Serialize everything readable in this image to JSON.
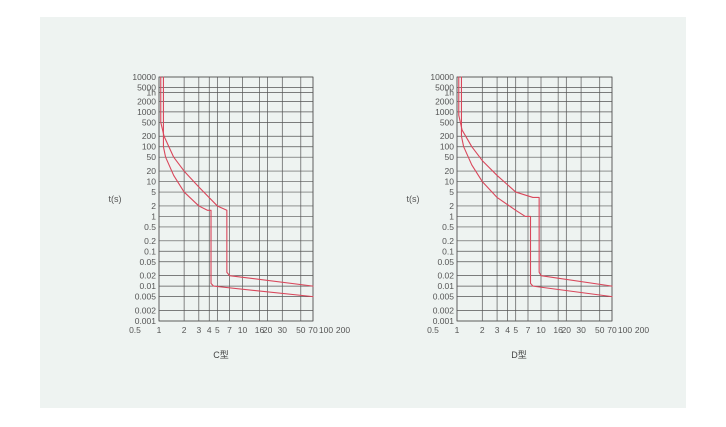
{
  "colors": {
    "background": "#eef3f1",
    "grid": "#555555",
    "curve": "#d9475b"
  },
  "chart_data": [
    {
      "type": "line",
      "title": "C型",
      "xlabel": "",
      "ylabel": "t(s)",
      "x_scale": "log",
      "y_scale": "log",
      "xlim": [
        1,
        70
      ],
      "ylim": [
        0.001,
        10000
      ],
      "x_tick_labels": [
        "0.5",
        "1",
        "2",
        "3",
        "4",
        "5",
        "7",
        "10",
        "16",
        "20",
        "30",
        "50",
        "70",
        "100",
        "200"
      ],
      "y_tick_labels": [
        "10000",
        "5000",
        "1h",
        "2000",
        "1000",
        "500",
        "200",
        "100",
        "50",
        "20",
        "10",
        "5",
        "2",
        "1",
        "0.5",
        "0.2",
        "0.1",
        "0.05",
        "0.02",
        "0.01",
        "0.005",
        "0.002",
        "0.001"
      ],
      "series": [
        {
          "x": [
            1.13,
            1.13,
            1.2,
            1.5,
            2,
            3,
            3.8,
            4.2,
            4.2,
            4.5,
            70
          ],
          "y": [
            10000,
            100,
            50,
            15,
            5,
            2,
            1.5,
            1.5,
            0.012,
            0.01,
            0.005
          ]
        },
        {
          "x": [
            1.05,
            1.05,
            1.15,
            1.5,
            2,
            3,
            5,
            6.5,
            6.5,
            7,
            70
          ],
          "y": [
            10000,
            500,
            200,
            50,
            20,
            7,
            2,
            1.5,
            0.025,
            0.02,
            0.01
          ]
        }
      ]
    },
    {
      "type": "line",
      "title": "D型",
      "xlabel": "",
      "ylabel": "t(s)",
      "x_scale": "log",
      "y_scale": "log",
      "xlim": [
        1,
        70
      ],
      "ylim": [
        0.001,
        10000
      ],
      "x_tick_labels": [
        "0.5",
        "1",
        "2",
        "3",
        "4",
        "5",
        "7",
        "10",
        "16",
        "20",
        "30",
        "50",
        "70",
        "100",
        "200"
      ],
      "y_tick_labels": [
        "10000",
        "5000",
        "1h",
        "2000",
        "1000",
        "500",
        "200",
        "100",
        "50",
        "20",
        "10",
        "5",
        "2",
        "1",
        "0.5",
        "0.2",
        "0.1",
        "0.05",
        "0.02",
        "0.01",
        "0.005",
        "0.002",
        "0.001"
      ],
      "series": [
        {
          "x": [
            1.13,
            1.13,
            1.2,
            1.5,
            2,
            3,
            5,
            6.5,
            7.5,
            7.5,
            8,
            70
          ],
          "y": [
            10000,
            200,
            100,
            30,
            10,
            3.5,
            1.5,
            1,
            1,
            0.012,
            0.01,
            0.005
          ]
        },
        {
          "x": [
            1.05,
            1.05,
            1.15,
            1.5,
            2,
            3,
            5,
            8,
            9.5,
            9.5,
            10,
            70
          ],
          "y": [
            10000,
            800,
            300,
            100,
            40,
            15,
            5,
            3.5,
            3.5,
            0.025,
            0.02,
            0.01
          ]
        }
      ]
    }
  ]
}
